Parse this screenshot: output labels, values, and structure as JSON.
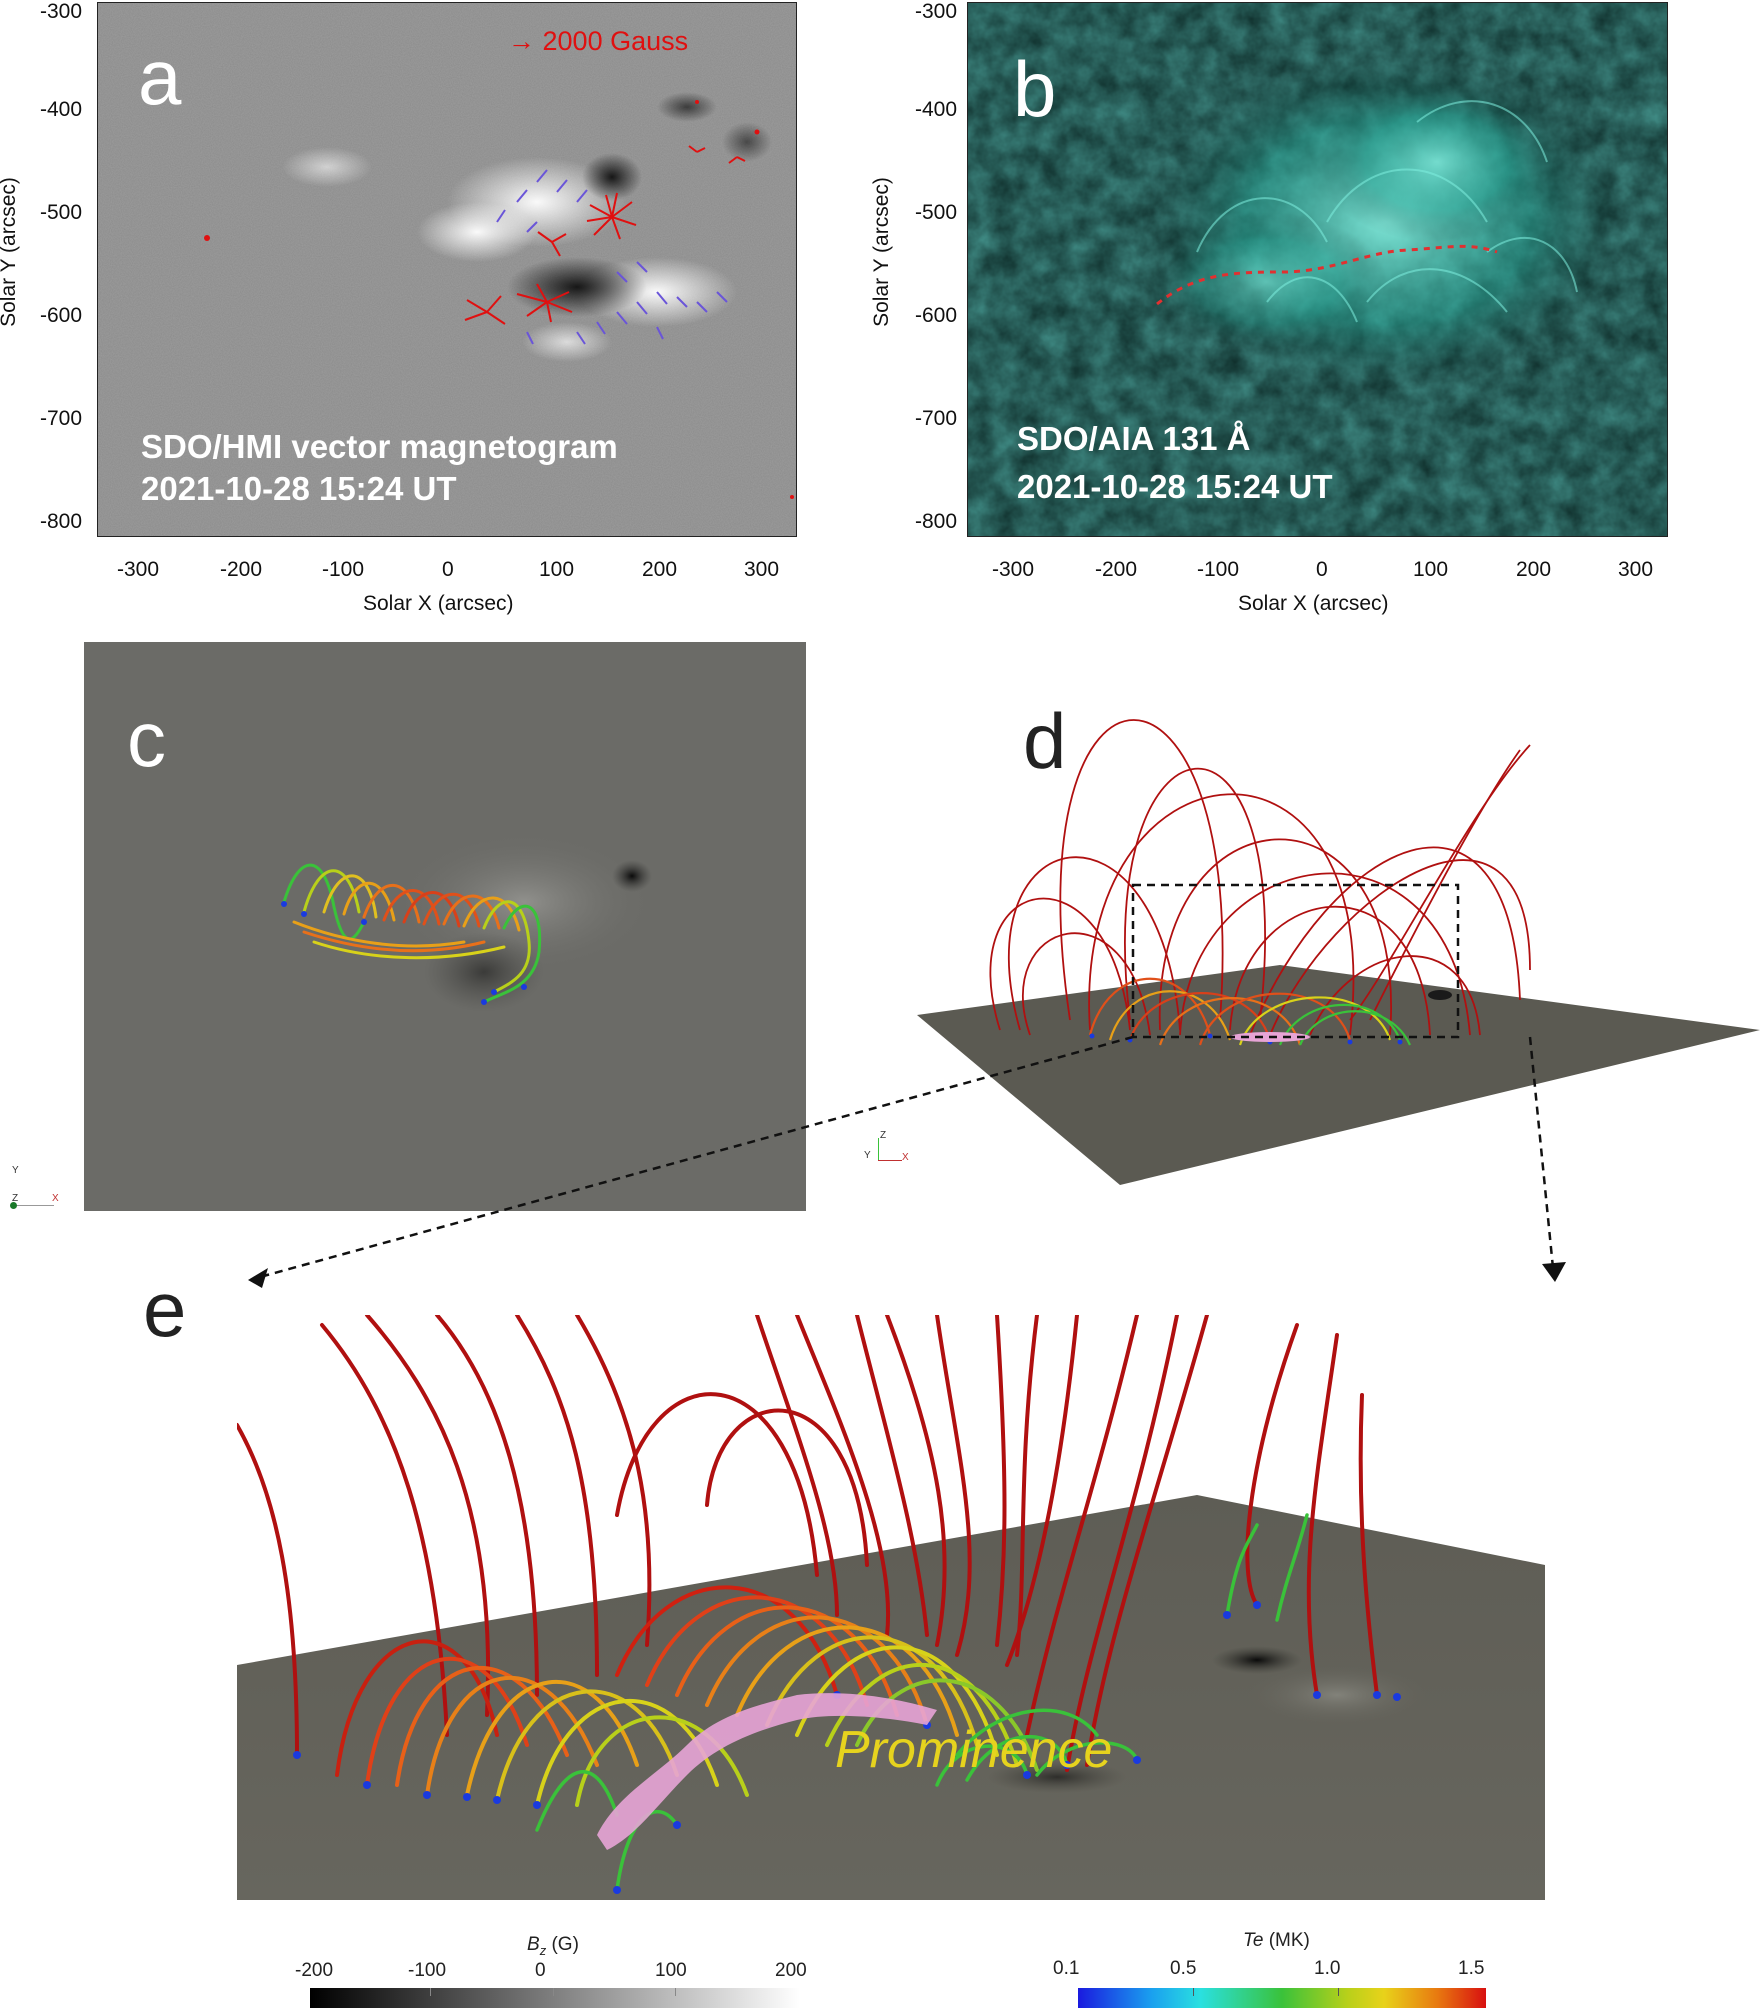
{
  "panel_a": {
    "letter": "a",
    "legend_arrow": "→",
    "legend_text": "2000 Gauss",
    "caption_line1": "SDO/HMI vector magnetogram",
    "caption_line2": "2021-10-28 15:24 UT",
    "xlabel": "Solar X (arcsec)",
    "ylabel": "Solar Y (arcsec)",
    "xticks": [
      "-300",
      "-200",
      "-100",
      "0",
      "100",
      "200",
      "300"
    ],
    "yticks": [
      "-300",
      "-400",
      "-500",
      "-600",
      "-700",
      "-800"
    ]
  },
  "panel_b": {
    "letter": "b",
    "caption_line1": "SDO/AIA 131 Å",
    "caption_line2": "2021-10-28 15:24 UT",
    "xlabel": "Solar X (arcsec)",
    "ylabel": "Solar Y (arcsec)",
    "xticks": [
      "-300",
      "-200",
      "-100",
      "0",
      "100",
      "200",
      "300"
    ],
    "yticks": [
      "-300",
      "-400",
      "-500",
      "-600",
      "-700",
      "-800"
    ]
  },
  "panel_c": {
    "letter": "c",
    "axis_y": "Y",
    "axis_z": "Z",
    "axis_x": "X"
  },
  "panel_d": {
    "letter": "d",
    "axis_y": "Y",
    "axis_z": "Z",
    "axis_x": "X"
  },
  "panel_e": {
    "letter": "e",
    "annotation": "Prominence"
  },
  "colorbar_bz": {
    "title_main": "B",
    "title_sub": "z",
    "title_unit": " (G)",
    "ticks": [
      "-200",
      "-100",
      "0",
      "100",
      "200"
    ]
  },
  "colorbar_te": {
    "title_main": "Te",
    "title_unit": " (MK)",
    "ticks": [
      "0.1",
      "0.5",
      "1.0",
      "1.5"
    ]
  },
  "colors": {
    "magnetogram_bg": "#8a8a8a",
    "aia_bg": "#0d2a27",
    "aia_glow": "#3fd6c4",
    "field_red": "#b01010",
    "field_orange": "#e87a10",
    "field_yellow": "#d8d21a",
    "field_green": "#3ac23a",
    "field_blue": "#1a3adf",
    "prominence_pink": "#e7a4d6",
    "annotation_yellow": "#e6d31e",
    "surface_gray": "#5b5a52"
  }
}
